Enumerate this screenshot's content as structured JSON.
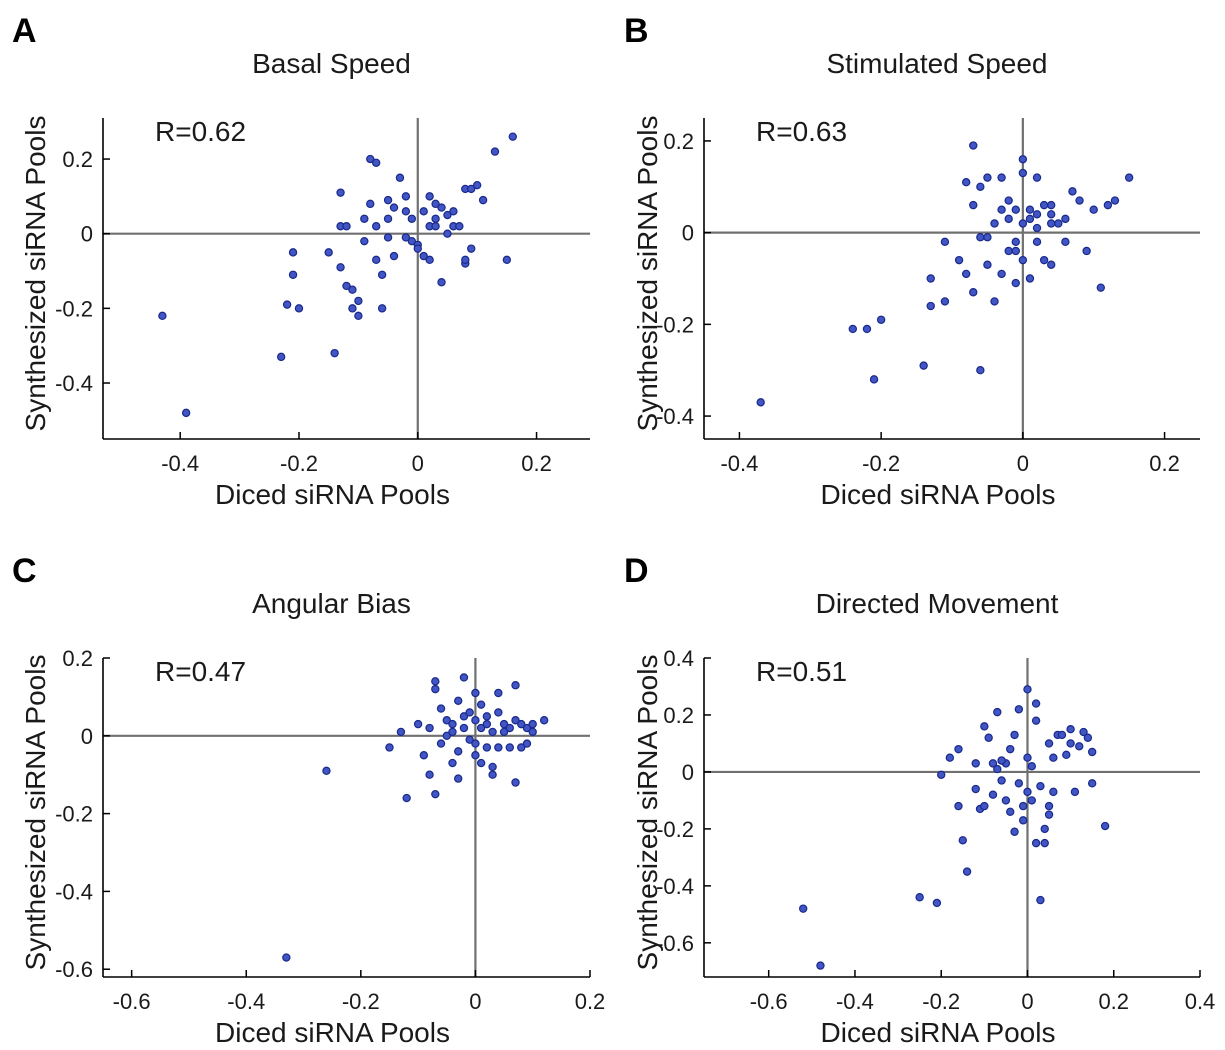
{
  "colors": {
    "point": "#4155c4",
    "point_edge": "#1a2a8a",
    "zero_line": "#707070"
  },
  "chart_data": [
    {
      "type": "scatter",
      "panel": "A",
      "title": "Basal Speed",
      "xlabel": "Diced siRNA Pools",
      "ylabel": "Synthesized siRNA Pools",
      "annotation": "R=0.62",
      "xlim": [
        -0.53,
        0.29
      ],
      "ylim": [
        -0.55,
        0.31
      ],
      "xticks": [
        -0.4,
        -0.2,
        0,
        0.2
      ],
      "xtick_labels": [
        "-0.4",
        "-0.2",
        "0",
        "0.2"
      ],
      "yticks": [
        -0.4,
        -0.2,
        0,
        0.2
      ],
      "ytick_labels": [
        "-0.4",
        "-0.2",
        "0",
        "0.2"
      ],
      "points": [
        [
          -0.43,
          -0.22
        ],
        [
          -0.39,
          -0.48
        ],
        [
          -0.23,
          -0.33
        ],
        [
          -0.22,
          -0.19
        ],
        [
          -0.21,
          -0.11
        ],
        [
          -0.21,
          -0.05
        ],
        [
          -0.2,
          -0.2
        ],
        [
          -0.15,
          -0.05
        ],
        [
          -0.14,
          -0.32
        ],
        [
          -0.13,
          -0.09
        ],
        [
          -0.13,
          0.11
        ],
        [
          -0.13,
          0.02
        ],
        [
          -0.12,
          -0.14
        ],
        [
          -0.12,
          0.02
        ],
        [
          -0.11,
          -0.15
        ],
        [
          -0.11,
          -0.2
        ],
        [
          -0.1,
          -0.22
        ],
        [
          -0.1,
          -0.18
        ],
        [
          -0.09,
          0.04
        ],
        [
          -0.09,
          -0.02
        ],
        [
          -0.08,
          0.2
        ],
        [
          -0.08,
          0.08
        ],
        [
          -0.07,
          0.19
        ],
        [
          -0.07,
          -0.07
        ],
        [
          -0.07,
          0.02
        ],
        [
          -0.06,
          -0.11
        ],
        [
          -0.06,
          -0.2
        ],
        [
          -0.05,
          0.09
        ],
        [
          -0.05,
          0.04
        ],
        [
          -0.05,
          -0.01
        ],
        [
          -0.04,
          0.07
        ],
        [
          -0.04,
          -0.06
        ],
        [
          -0.03,
          0.15
        ],
        [
          -0.02,
          -0.01
        ],
        [
          -0.02,
          0.06
        ],
        [
          -0.02,
          0.1
        ],
        [
          -0.01,
          0.04
        ],
        [
          -0.01,
          -0.02
        ],
        [
          0,
          -0.03
        ],
        [
          0,
          -0.04
        ],
        [
          0.01,
          -0.06
        ],
        [
          0.01,
          0.06
        ],
        [
          0.02,
          -0.07
        ],
        [
          0.02,
          0.02
        ],
        [
          0.02,
          0.1
        ],
        [
          0.03,
          0.08
        ],
        [
          0.03,
          0.04
        ],
        [
          0.03,
          0.02
        ],
        [
          0.04,
          0.07
        ],
        [
          0.04,
          -0.13
        ],
        [
          0.05,
          0.05
        ],
        [
          0.05,
          0
        ],
        [
          0.06,
          0.02
        ],
        [
          0.06,
          0.06
        ],
        [
          0.07,
          0.02
        ],
        [
          0.08,
          -0.08
        ],
        [
          0.08,
          -0.07
        ],
        [
          0.08,
          0.12
        ],
        [
          0.09,
          -0.04
        ],
        [
          0.09,
          0.12
        ],
        [
          0.1,
          0.13
        ],
        [
          0.11,
          0.09
        ],
        [
          0.13,
          0.22
        ],
        [
          0.15,
          -0.07
        ],
        [
          0.16,
          0.26
        ]
      ]
    },
    {
      "type": "scatter",
      "panel": "B",
      "title": "Stimulated Speed",
      "xlabel": "Diced siRNA Pools",
      "ylabel": "Synthesized siRNA Pools",
      "annotation": "R=0.63",
      "xlim": [
        -0.45,
        0.25
      ],
      "ylim": [
        -0.45,
        0.25
      ],
      "xticks": [
        -0.4,
        -0.2,
        0,
        0.2
      ],
      "xtick_labels": [
        "-0.4",
        "-0.2",
        "0",
        "0.2"
      ],
      "yticks": [
        -0.4,
        -0.2,
        0,
        0.2
      ],
      "ytick_labels": [
        "-0.4",
        "-0.2",
        "0",
        "0.2"
      ],
      "points": [
        [
          -0.37,
          -0.37
        ],
        [
          -0.24,
          -0.21
        ],
        [
          -0.22,
          -0.21
        ],
        [
          -0.2,
          -0.19
        ],
        [
          -0.21,
          -0.32
        ],
        [
          -0.14,
          -0.29
        ],
        [
          -0.13,
          -0.16
        ],
        [
          -0.13,
          -0.1
        ],
        [
          -0.11,
          -0.15
        ],
        [
          -0.11,
          -0.02
        ],
        [
          -0.09,
          -0.06
        ],
        [
          -0.08,
          0.11
        ],
        [
          -0.08,
          -0.09
        ],
        [
          -0.07,
          0.19
        ],
        [
          -0.07,
          -0.13
        ],
        [
          -0.07,
          0.06
        ],
        [
          -0.06,
          0.1
        ],
        [
          -0.06,
          -0.01
        ],
        [
          -0.06,
          -0.3
        ],
        [
          -0.05,
          0.12
        ],
        [
          -0.05,
          -0.07
        ],
        [
          -0.05,
          -0.01
        ],
        [
          -0.04,
          0.02
        ],
        [
          -0.04,
          -0.15
        ],
        [
          -0.03,
          0.05
        ],
        [
          -0.03,
          -0.09
        ],
        [
          -0.03,
          0.12
        ],
        [
          -0.02,
          0.03
        ],
        [
          -0.02,
          -0.04
        ],
        [
          -0.02,
          0.07
        ],
        [
          -0.01,
          0.05
        ],
        [
          -0.01,
          -0.02
        ],
        [
          -0.01,
          -0.11
        ],
        [
          -0.01,
          -0.04
        ],
        [
          0,
          0.13
        ],
        [
          0,
          0.02
        ],
        [
          0,
          -0.06
        ],
        [
          0,
          0.16
        ],
        [
          0.01,
          -0.1
        ],
        [
          0.01,
          0.05
        ],
        [
          0.01,
          0.03
        ],
        [
          0.02,
          0.04
        ],
        [
          0.02,
          -0.02
        ],
        [
          0.02,
          0.01
        ],
        [
          0.02,
          0.12
        ],
        [
          0.03,
          0.06
        ],
        [
          0.03,
          -0.06
        ],
        [
          0.04,
          0.04
        ],
        [
          0.04,
          -0.07
        ],
        [
          0.04,
          0.06
        ],
        [
          0.05,
          0.02
        ],
        [
          0.06,
          0.03
        ],
        [
          0.07,
          0.09
        ],
        [
          0.08,
          0.07
        ],
        [
          0.09,
          -0.04
        ],
        [
          0.1,
          0.05
        ],
        [
          0.11,
          -0.12
        ],
        [
          0.12,
          0.06
        ],
        [
          0.13,
          0.07
        ],
        [
          0.15,
          0.12
        ],
        [
          0.04,
          0.02
        ],
        [
          0.06,
          -0.02
        ]
      ]
    },
    {
      "type": "scatter",
      "panel": "C",
      "title": "Angular Bias",
      "xlabel": "Diced siRNA Pools",
      "ylabel": "Synthesized siRNA Pools",
      "annotation": "R=0.47",
      "xlim": [
        -0.65,
        0.2
      ],
      "ylim": [
        -0.62,
        0.2
      ],
      "xticks": [
        -0.6,
        -0.4,
        -0.2,
        0,
        0.2
      ],
      "xtick_labels": [
        "-0.6",
        "-0.4",
        "-0.2",
        "0",
        "0.2"
      ],
      "yticks": [
        -0.6,
        -0.4,
        -0.2,
        0,
        0.2
      ],
      "ytick_labels": [
        "-0.6",
        "-0.4",
        "-0.2",
        "0",
        "0.2"
      ],
      "points": [
        [
          -0.33,
          -0.57
        ],
        [
          -0.26,
          -0.09
        ],
        [
          -0.15,
          -0.03
        ],
        [
          -0.13,
          0.01
        ],
        [
          -0.12,
          -0.16
        ],
        [
          -0.1,
          0.03
        ],
        [
          -0.09,
          -0.05
        ],
        [
          -0.08,
          -0.1
        ],
        [
          -0.08,
          0.02
        ],
        [
          -0.07,
          0.14
        ],
        [
          -0.07,
          0.12
        ],
        [
          -0.07,
          -0.15
        ],
        [
          -0.06,
          0.07
        ],
        [
          -0.06,
          -0.02
        ],
        [
          -0.05,
          0.04
        ],
        [
          -0.05,
          0
        ],
        [
          -0.04,
          0.01
        ],
        [
          -0.04,
          -0.07
        ],
        [
          -0.04,
          0.03
        ],
        [
          -0.03,
          -0.04
        ],
        [
          -0.03,
          0.09
        ],
        [
          -0.03,
          -0.11
        ],
        [
          -0.02,
          0.15
        ],
        [
          -0.02,
          0.05
        ],
        [
          -0.02,
          0.02
        ],
        [
          -0.01,
          -0.01
        ],
        [
          -0.01,
          0.06
        ],
        [
          0,
          -0.02
        ],
        [
          0,
          0.04
        ],
        [
          0,
          0.11
        ],
        [
          0,
          -0.05
        ],
        [
          0.01,
          0.02
        ],
        [
          0.01,
          -0.07
        ],
        [
          0.01,
          0.08
        ],
        [
          0.02,
          0.05
        ],
        [
          0.02,
          -0.03
        ],
        [
          0.02,
          0.03
        ],
        [
          0.03,
          0.01
        ],
        [
          0.03,
          -0.1
        ],
        [
          0.03,
          -0.08
        ],
        [
          0.04,
          0.06
        ],
        [
          0.04,
          -0.03
        ],
        [
          0.05,
          0.03
        ],
        [
          0.05,
          0.01
        ],
        [
          0.06,
          0.02
        ],
        [
          0.06,
          -0.03
        ],
        [
          0.07,
          0.13
        ],
        [
          0.07,
          -0.12
        ],
        [
          0.07,
          0.04
        ],
        [
          0.08,
          -0.03
        ],
        [
          0.09,
          0.02
        ],
        [
          0.09,
          -0.02
        ],
        [
          0.1,
          0.03
        ],
        [
          0.1,
          0.01
        ],
        [
          0.12,
          0.04
        ],
        [
          0.04,
          0.11
        ],
        [
          0.08,
          0.03
        ]
      ]
    },
    {
      "type": "scatter",
      "panel": "D",
      "title": "Directed Movement",
      "xlabel": "Diced siRNA Pools",
      "ylabel": "Synthesized siRNA Pools",
      "annotation": "R=0.51",
      "xlim": [
        -0.75,
        0.4
      ],
      "ylim": [
        -0.72,
        0.4
      ],
      "xticks": [
        -0.6,
        -0.4,
        -0.2,
        0,
        0.2,
        0.4
      ],
      "xtick_labels": [
        "-0.6",
        "-0.4",
        "-0.2",
        "0",
        "0.2",
        "0.4"
      ],
      "yticks": [
        -0.6,
        -0.4,
        -0.2,
        0,
        0.2,
        0.4
      ],
      "ytick_labels": [
        "-0.6",
        "-0.4",
        "-0.2",
        "0",
        "0.2",
        "0.4"
      ],
      "points": [
        [
          -0.52,
          -0.48
        ],
        [
          -0.48,
          -0.68
        ],
        [
          -0.25,
          -0.44
        ],
        [
          -0.21,
          -0.46
        ],
        [
          -0.2,
          -0.01
        ],
        [
          -0.18,
          0.05
        ],
        [
          -0.16,
          0.08
        ],
        [
          -0.16,
          -0.12
        ],
        [
          -0.15,
          -0.24
        ],
        [
          -0.14,
          -0.35
        ],
        [
          -0.12,
          -0.06
        ],
        [
          -0.12,
          0.03
        ],
        [
          -0.11,
          -0.13
        ],
        [
          -0.1,
          0.16
        ],
        [
          -0.1,
          -0.12
        ],
        [
          -0.09,
          0.12
        ],
        [
          -0.08,
          0.03
        ],
        [
          -0.08,
          -0.08
        ],
        [
          -0.07,
          0.21
        ],
        [
          -0.07,
          0.01
        ],
        [
          -0.06,
          -0.03
        ],
        [
          -0.06,
          0.04
        ],
        [
          -0.05,
          -0.1
        ],
        [
          -0.05,
          0.03
        ],
        [
          -0.04,
          0.08
        ],
        [
          -0.04,
          -0.14
        ],
        [
          -0.03,
          -0.21
        ],
        [
          -0.03,
          0.13
        ],
        [
          -0.02,
          0.22
        ],
        [
          -0.02,
          -0.04
        ],
        [
          -0.01,
          -0.17
        ],
        [
          -0.01,
          -0.12
        ],
        [
          0,
          0.29
        ],
        [
          0,
          0.05
        ],
        [
          0,
          -0.07
        ],
        [
          0.01,
          0.02
        ],
        [
          0.01,
          -0.1
        ],
        [
          0.02,
          0.24
        ],
        [
          0.02,
          0.18
        ],
        [
          0.02,
          -0.25
        ],
        [
          0.03,
          -0.45
        ],
        [
          0.03,
          -0.05
        ],
        [
          0.04,
          -0.2
        ],
        [
          0.04,
          -0.25
        ],
        [
          0.05,
          0.1
        ],
        [
          0.05,
          -0.12
        ],
        [
          0.06,
          0.05
        ],
        [
          0.06,
          -0.07
        ],
        [
          0.07,
          0.13
        ],
        [
          0.08,
          0.13
        ],
        [
          0.09,
          0.06
        ],
        [
          0.1,
          0.15
        ],
        [
          0.1,
          0.1
        ],
        [
          0.11,
          -0.07
        ],
        [
          0.12,
          0.09
        ],
        [
          0.13,
          0.14
        ],
        [
          0.14,
          0.12
        ],
        [
          0.15,
          -0.04
        ],
        [
          0.15,
          0.07
        ],
        [
          0.18,
          -0.19
        ],
        [
          0.05,
          -0.15
        ],
        [
          -0.06,
          0.04
        ]
      ]
    }
  ]
}
